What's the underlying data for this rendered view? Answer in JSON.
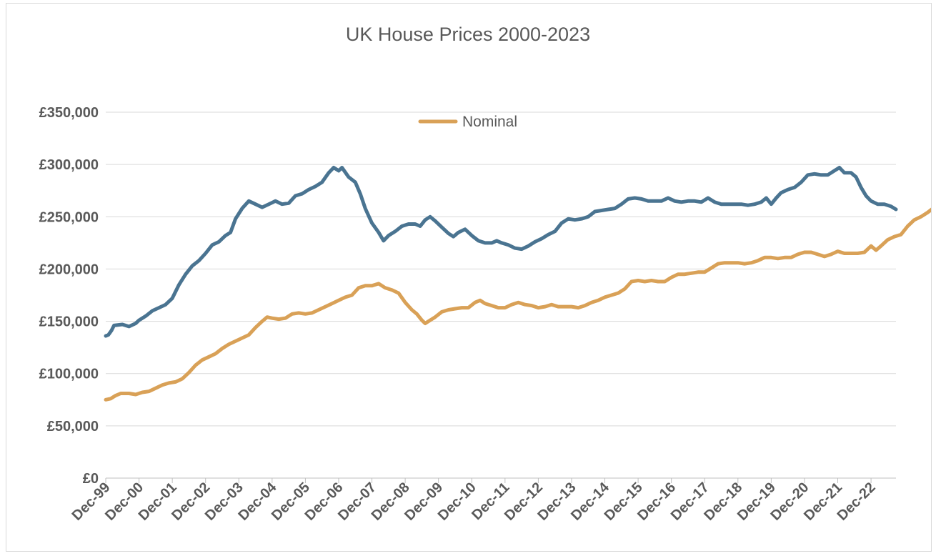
{
  "chart_data": {
    "type": "line",
    "title": "UK House Prices 2000-2023",
    "xlabel": "",
    "ylabel": "",
    "ylim": [
      0,
      350000
    ],
    "yticks": [
      0,
      50000,
      100000,
      150000,
      200000,
      250000,
      300000,
      350000
    ],
    "ytick_labels": [
      "£0",
      "£50,000",
      "£100,000",
      "£150,000",
      "£200,000",
      "£250,000",
      "£300,000",
      "£350,000"
    ],
    "xtick_labels": [
      "Dec-99",
      "Dec-00",
      "Dec-01",
      "Dec-02",
      "Dec-03",
      "Dec-04",
      "Dec-05",
      "Dec-06",
      "Dec-07",
      "Dec-08",
      "Dec-09",
      "Dec-10",
      "Dec-11",
      "Dec-12",
      "Dec-13",
      "Dec-14",
      "Dec-15",
      "Dec-16",
      "Dec-17",
      "Dec-18",
      "Dec-19",
      "Dec-20",
      "Dec-21",
      "Dec-22"
    ],
    "grid": true,
    "legend": {
      "placement": "top-center",
      "entries": [
        "Nominal"
      ]
    },
    "series": [
      {
        "name": "",
        "color": "#4a7491",
        "points": [
          [
            0,
            136000
          ],
          [
            0.08,
            137000
          ],
          [
            0.17,
            141000
          ],
          [
            0.25,
            146000
          ],
          [
            0.5,
            147000
          ],
          [
            0.7,
            145000
          ],
          [
            0.9,
            148000
          ],
          [
            1.0,
            151000
          ],
          [
            1.2,
            155000
          ],
          [
            1.4,
            160000
          ],
          [
            1.6,
            163000
          ],
          [
            1.8,
            166000
          ],
          [
            2.0,
            172000
          ],
          [
            2.2,
            185000
          ],
          [
            2.4,
            195000
          ],
          [
            2.6,
            203000
          ],
          [
            2.8,
            208000
          ],
          [
            3.0,
            215000
          ],
          [
            3.2,
            223000
          ],
          [
            3.4,
            226000
          ],
          [
            3.6,
            232000
          ],
          [
            3.75,
            235000
          ],
          [
            3.9,
            248000
          ],
          [
            4.1,
            258000
          ],
          [
            4.3,
            265000
          ],
          [
            4.5,
            262000
          ],
          [
            4.7,
            259000
          ],
          [
            4.9,
            262000
          ],
          [
            5.1,
            265000
          ],
          [
            5.3,
            262000
          ],
          [
            5.5,
            263000
          ],
          [
            5.7,
            270000
          ],
          [
            5.9,
            272000
          ],
          [
            6.1,
            276000
          ],
          [
            6.3,
            279000
          ],
          [
            6.5,
            283000
          ],
          [
            6.7,
            292000
          ],
          [
            6.85,
            297000
          ],
          [
            7.0,
            294000
          ],
          [
            7.1,
            297000
          ],
          [
            7.3,
            288000
          ],
          [
            7.5,
            283000
          ],
          [
            7.65,
            272000
          ],
          [
            7.8,
            258000
          ],
          [
            8.0,
            244000
          ],
          [
            8.2,
            235000
          ],
          [
            8.35,
            227000
          ],
          [
            8.5,
            232000
          ],
          [
            8.7,
            236000
          ],
          [
            8.9,
            241000
          ],
          [
            9.1,
            243000
          ],
          [
            9.3,
            243000
          ],
          [
            9.45,
            241000
          ],
          [
            9.6,
            247000
          ],
          [
            9.75,
            250000
          ],
          [
            9.9,
            246000
          ],
          [
            10.1,
            240000
          ],
          [
            10.3,
            234000
          ],
          [
            10.45,
            231000
          ],
          [
            10.6,
            235000
          ],
          [
            10.8,
            238000
          ],
          [
            11.0,
            232000
          ],
          [
            11.2,
            227000
          ],
          [
            11.4,
            225000
          ],
          [
            11.6,
            225000
          ],
          [
            11.75,
            227000
          ],
          [
            11.9,
            225000
          ],
          [
            12.1,
            223000
          ],
          [
            12.3,
            220000
          ],
          [
            12.5,
            219000
          ],
          [
            12.7,
            222000
          ],
          [
            12.9,
            226000
          ],
          [
            13.1,
            229000
          ],
          [
            13.3,
            233000
          ],
          [
            13.5,
            236000
          ],
          [
            13.7,
            244000
          ],
          [
            13.9,
            248000
          ],
          [
            14.1,
            247000
          ],
          [
            14.3,
            248000
          ],
          [
            14.5,
            250000
          ],
          [
            14.7,
            255000
          ],
          [
            14.9,
            256000
          ],
          [
            15.1,
            257000
          ],
          [
            15.3,
            258000
          ],
          [
            15.5,
            262000
          ],
          [
            15.7,
            267000
          ],
          [
            15.9,
            268000
          ],
          [
            16.1,
            267000
          ],
          [
            16.3,
            265000
          ],
          [
            16.5,
            265000
          ],
          [
            16.7,
            265000
          ],
          [
            16.9,
            268000
          ],
          [
            17.1,
            265000
          ],
          [
            17.3,
            264000
          ],
          [
            17.5,
            265000
          ],
          [
            17.7,
            265000
          ],
          [
            17.9,
            264000
          ],
          [
            18.1,
            268000
          ],
          [
            18.3,
            264000
          ],
          [
            18.5,
            262000
          ],
          [
            18.7,
            262000
          ],
          [
            18.9,
            262000
          ],
          [
            19.1,
            262000
          ],
          [
            19.3,
            261000
          ],
          [
            19.5,
            262000
          ],
          [
            19.7,
            264000
          ],
          [
            19.85,
            268000
          ],
          [
            20.0,
            262000
          ],
          [
            20.15,
            268000
          ],
          [
            20.3,
            273000
          ],
          [
            20.5,
            276000
          ],
          [
            20.7,
            278000
          ],
          [
            20.9,
            283000
          ],
          [
            21.1,
            290000
          ],
          [
            21.3,
            291000
          ],
          [
            21.5,
            290000
          ],
          [
            21.7,
            290000
          ],
          [
            21.9,
            294000
          ],
          [
            22.05,
            297000
          ],
          [
            22.2,
            292000
          ],
          [
            22.4,
            292000
          ],
          [
            22.55,
            288000
          ],
          [
            22.7,
            278000
          ],
          [
            22.85,
            270000
          ],
          [
            23.0,
            265000
          ],
          [
            23.2,
            262000
          ],
          [
            23.4,
            262000
          ],
          [
            23.6,
            260000
          ],
          [
            23.75,
            257000
          ]
        ]
      },
      {
        "name": "Nominal",
        "color": "#d9a157",
        "points": [
          [
            0,
            75000
          ],
          [
            0.15,
            76000
          ],
          [
            0.3,
            79000
          ],
          [
            0.45,
            81000
          ],
          [
            0.7,
            81000
          ],
          [
            0.9,
            80000
          ],
          [
            1.1,
            82000
          ],
          [
            1.3,
            83000
          ],
          [
            1.5,
            86000
          ],
          [
            1.7,
            89000
          ],
          [
            1.9,
            91000
          ],
          [
            2.1,
            92000
          ],
          [
            2.3,
            95000
          ],
          [
            2.5,
            101000
          ],
          [
            2.7,
            108000
          ],
          [
            2.9,
            113000
          ],
          [
            3.1,
            116000
          ],
          [
            3.3,
            119000
          ],
          [
            3.5,
            124000
          ],
          [
            3.7,
            128000
          ],
          [
            3.9,
            131000
          ],
          [
            4.1,
            134000
          ],
          [
            4.3,
            137000
          ],
          [
            4.5,
            144000
          ],
          [
            4.7,
            150000
          ],
          [
            4.85,
            154000
          ],
          [
            5.0,
            153000
          ],
          [
            5.2,
            152000
          ],
          [
            5.4,
            153000
          ],
          [
            5.6,
            157000
          ],
          [
            5.8,
            158000
          ],
          [
            6.0,
            157000
          ],
          [
            6.2,
            158000
          ],
          [
            6.4,
            161000
          ],
          [
            6.6,
            164000
          ],
          [
            6.8,
            167000
          ],
          [
            7.0,
            170000
          ],
          [
            7.2,
            173000
          ],
          [
            7.4,
            175000
          ],
          [
            7.6,
            182000
          ],
          [
            7.8,
            184000
          ],
          [
            8.0,
            184000
          ],
          [
            8.2,
            186000
          ],
          [
            8.4,
            182000
          ],
          [
            8.6,
            180000
          ],
          [
            8.8,
            177000
          ],
          [
            9.0,
            168000
          ],
          [
            9.2,
            161000
          ],
          [
            9.35,
            157000
          ],
          [
            9.5,
            151000
          ],
          [
            9.6,
            148000
          ],
          [
            9.75,
            151000
          ],
          [
            9.9,
            154000
          ],
          [
            10.1,
            159000
          ],
          [
            10.3,
            161000
          ],
          [
            10.5,
            162000
          ],
          [
            10.7,
            163000
          ],
          [
            10.9,
            163000
          ],
          [
            11.1,
            168000
          ],
          [
            11.25,
            170000
          ],
          [
            11.4,
            167000
          ],
          [
            11.6,
            165000
          ],
          [
            11.8,
            163000
          ],
          [
            12.0,
            163000
          ],
          [
            12.2,
            166000
          ],
          [
            12.4,
            168000
          ],
          [
            12.6,
            166000
          ],
          [
            12.8,
            165000
          ],
          [
            13.0,
            163000
          ],
          [
            13.2,
            164000
          ],
          [
            13.4,
            166000
          ],
          [
            13.6,
            164000
          ],
          [
            13.8,
            164000
          ],
          [
            14.0,
            164000
          ],
          [
            14.2,
            163000
          ],
          [
            14.4,
            165000
          ],
          [
            14.6,
            168000
          ],
          [
            14.8,
            170000
          ],
          [
            15.0,
            173000
          ],
          [
            15.2,
            175000
          ],
          [
            15.4,
            177000
          ],
          [
            15.6,
            181000
          ],
          [
            15.8,
            188000
          ],
          [
            16.0,
            189000
          ],
          [
            16.2,
            188000
          ],
          [
            16.4,
            189000
          ],
          [
            16.6,
            188000
          ],
          [
            16.8,
            188000
          ],
          [
            17.0,
            192000
          ],
          [
            17.2,
            195000
          ],
          [
            17.4,
            195000
          ],
          [
            17.6,
            196000
          ],
          [
            17.8,
            197000
          ],
          [
            18.0,
            197000
          ],
          [
            18.2,
            201000
          ],
          [
            18.4,
            205000
          ],
          [
            18.6,
            206000
          ],
          [
            18.8,
            206000
          ],
          [
            19.0,
            206000
          ],
          [
            19.2,
            205000
          ],
          [
            19.4,
            206000
          ],
          [
            19.6,
            208000
          ],
          [
            19.8,
            211000
          ],
          [
            20.0,
            211000
          ],
          [
            20.2,
            210000
          ],
          [
            20.4,
            211000
          ],
          [
            20.6,
            211000
          ],
          [
            20.8,
            214000
          ],
          [
            21.0,
            216000
          ],
          [
            21.2,
            216000
          ],
          [
            21.4,
            214000
          ],
          [
            21.6,
            212000
          ],
          [
            21.8,
            214000
          ],
          [
            22.0,
            217000
          ],
          [
            22.2,
            215000
          ],
          [
            22.4,
            215000
          ],
          [
            22.6,
            215000
          ],
          [
            22.8,
            216000
          ],
          [
            23.0,
            222000
          ],
          [
            23.15,
            218000
          ],
          [
            23.3,
            222000
          ],
          [
            23.5,
            228000
          ],
          [
            23.7,
            231000
          ],
          [
            23.9,
            233000
          ],
          [
            24.1,
            241000
          ],
          [
            24.3,
            247000
          ],
          [
            24.5,
            250000
          ],
          [
            24.7,
            254000
          ],
          [
            24.9,
            259000
          ],
          [
            25.1,
            265000
          ],
          [
            25.3,
            270000
          ],
          [
            25.5,
            273000
          ],
          [
            25.65,
            274000
          ],
          [
            25.8,
            270000
          ],
          [
            26.0,
            263000
          ],
          [
            26.2,
            258000
          ],
          [
            26.4,
            259000
          ]
        ]
      }
    ]
  }
}
